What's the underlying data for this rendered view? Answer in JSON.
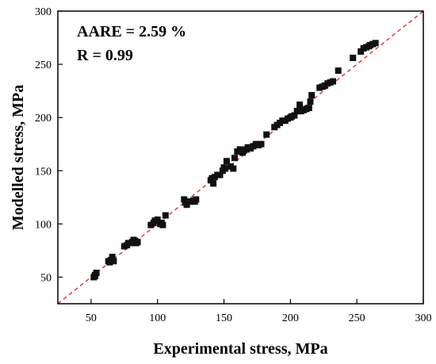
{
  "chart_data": {
    "type": "scatter",
    "xlabel": "Experimental stress, MPa",
    "ylabel": "Modelled stress, MPa",
    "xlim": [
      25,
      300
    ],
    "ylim": [
      25,
      300
    ],
    "xticks": [
      50,
      100,
      150,
      200,
      250,
      300
    ],
    "yticks": [
      50,
      100,
      150,
      200,
      250,
      300
    ],
    "annotations": [
      "AARE = 2.59 %",
      "R = 0.99"
    ],
    "reference_line": {
      "style": "dashed",
      "color": "#d62728",
      "from": [
        25,
        25
      ],
      "to": [
        300,
        300
      ]
    },
    "marker": {
      "shape": "square",
      "color": "#111111"
    },
    "points": [
      [
        52,
        50
      ],
      [
        53,
        52
      ],
      [
        54,
        54
      ],
      [
        53,
        51
      ],
      [
        63,
        65
      ],
      [
        64,
        64
      ],
      [
        65,
        66
      ],
      [
        66,
        69
      ],
      [
        67,
        65
      ],
      [
        75,
        79
      ],
      [
        77,
        80
      ],
      [
        78,
        82
      ],
      [
        80,
        82
      ],
      [
        81,
        83
      ],
      [
        82,
        85
      ],
      [
        83,
        84
      ],
      [
        84,
        82
      ],
      [
        85,
        83
      ],
      [
        95,
        99
      ],
      [
        97,
        101
      ],
      [
        98,
        103
      ],
      [
        100,
        104
      ],
      [
        102,
        100
      ],
      [
        103,
        101
      ],
      [
        104,
        99
      ],
      [
        106,
        108
      ],
      [
        120,
        123
      ],
      [
        121,
        120
      ],
      [
        122,
        118
      ],
      [
        123,
        121
      ],
      [
        125,
        121
      ],
      [
        127,
        122
      ],
      [
        128,
        121
      ],
      [
        129,
        123
      ],
      [
        140,
        141
      ],
      [
        141,
        143
      ],
      [
        142,
        138
      ],
      [
        143,
        144
      ],
      [
        145,
        146
      ],
      [
        147,
        146
      ],
      [
        149,
        150
      ],
      [
        150,
        153
      ],
      [
        151,
        152
      ],
      [
        152,
        159
      ],
      [
        155,
        154
      ],
      [
        157,
        152
      ],
      [
        158,
        162
      ],
      [
        160,
        168
      ],
      [
        162,
        170
      ],
      [
        164,
        167
      ],
      [
        165,
        169
      ],
      [
        167,
        170
      ],
      [
        168,
        172
      ],
      [
        170,
        171
      ],
      [
        172,
        173
      ],
      [
        174,
        175
      ],
      [
        176,
        174
      ],
      [
        178,
        175
      ],
      [
        182,
        184
      ],
      [
        188,
        191
      ],
      [
        190,
        193
      ],
      [
        192,
        195
      ],
      [
        194,
        197
      ],
      [
        196,
        197
      ],
      [
        198,
        199
      ],
      [
        200,
        200
      ],
      [
        201,
        201
      ],
      [
        203,
        202
      ],
      [
        205,
        206
      ],
      [
        206,
        206
      ],
      [
        207,
        212
      ],
      [
        208,
        206
      ],
      [
        210,
        207
      ],
      [
        212,
        208
      ],
      [
        214,
        209
      ],
      [
        215,
        215
      ],
      [
        216,
        221
      ],
      [
        222,
        228
      ],
      [
        224,
        229
      ],
      [
        226,
        230
      ],
      [
        228,
        232
      ],
      [
        230,
        233
      ],
      [
        232,
        234
      ],
      [
        236,
        244
      ],
      [
        247,
        256
      ],
      [
        253,
        262
      ],
      [
        255,
        265
      ],
      [
        257,
        266
      ],
      [
        259,
        267
      ],
      [
        260,
        268
      ],
      [
        262,
        269
      ],
      [
        264,
        270
      ]
    ]
  }
}
